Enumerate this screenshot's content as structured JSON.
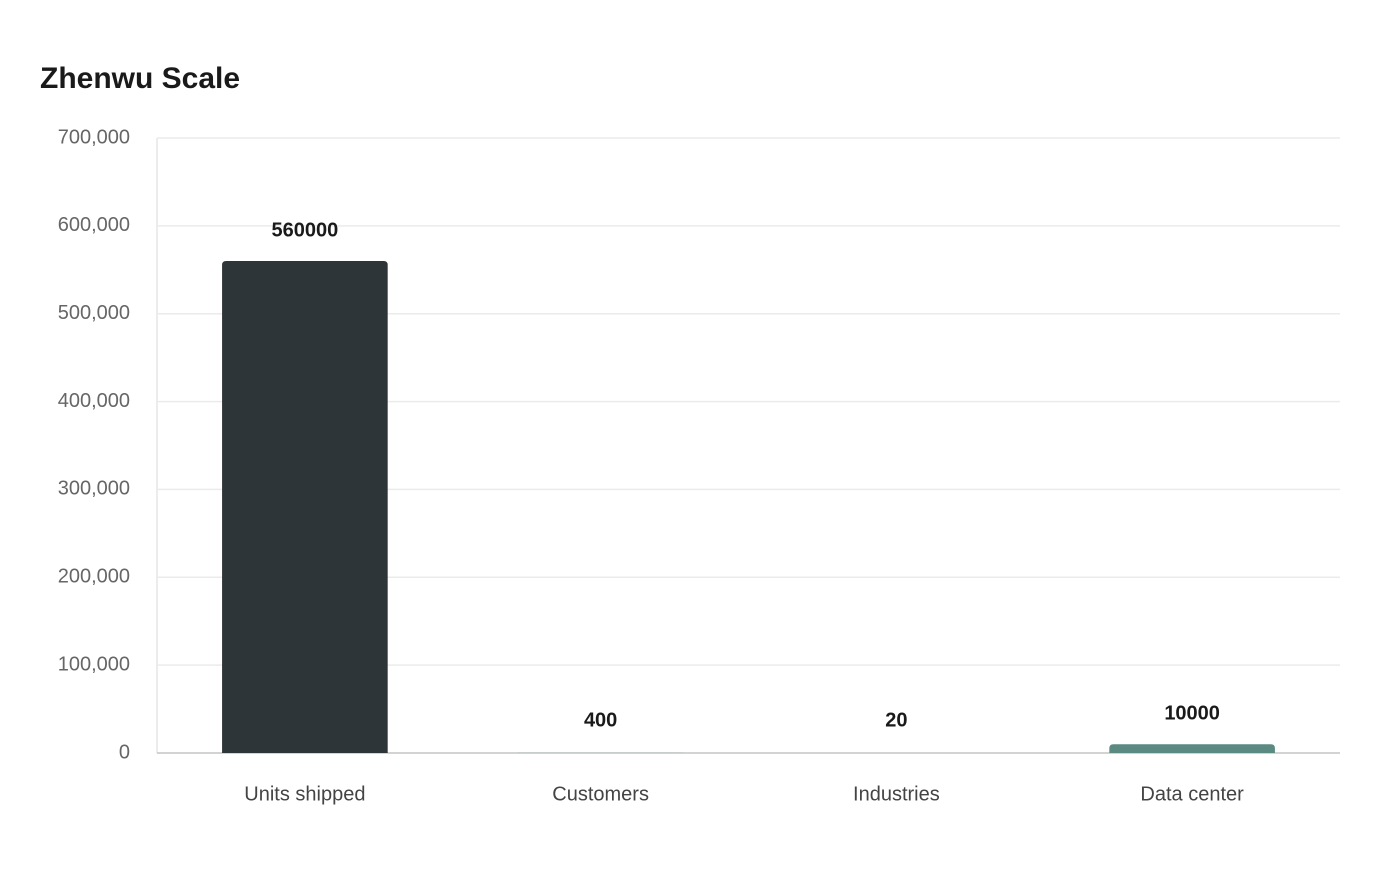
{
  "chart_data": {
    "type": "bar",
    "title": "Zhenwu Scale",
    "categories": [
      "Units shipped",
      "Customers",
      "Industries",
      "Data center"
    ],
    "values": [
      560000,
      400,
      20,
      10000
    ],
    "colors": [
      "#2e3538",
      "#a9b9b9",
      "#5e8f88",
      "#5b8a82"
    ],
    "ylim": [
      0,
      700000
    ],
    "yticks": [
      0,
      {
        "value": 100000,
        "label": "100,000"
      },
      {
        "value": 200000,
        "label": "200,000"
      },
      {
        "value": 300000,
        "label": "300,000"
      },
      {
        "value": 400000,
        "label": "400,000"
      },
      {
        "value": 500000,
        "label": "500,000"
      },
      {
        "value": 600000,
        "label": "600,000"
      },
      {
        "value": 700000,
        "label": "700,000"
      }
    ],
    "grid": true
  }
}
